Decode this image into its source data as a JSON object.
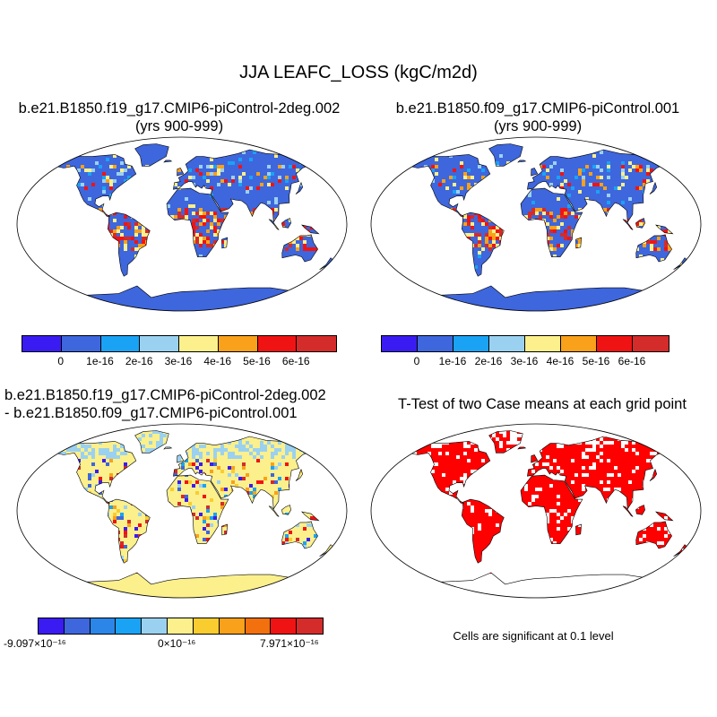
{
  "title": "JJA LEAFC_LOSS (kgC/m2d)",
  "panels": [
    {
      "line1": "b.e21.B1850.f19_g17.CMIP6-piControl-2deg.002",
      "line2": "(yrs 900-999)"
    },
    {
      "line1": "b.e21.B1850.f09_g17.CMIP6-piControl.001",
      "line2": "(yrs 900-999)"
    },
    {
      "line1": "b.e21.B1850.f19_g17.CMIP6-piControl-2deg.002",
      "line2": "- b.e21.B1850.f09_g17.CMIP6-piControl.001"
    },
    {
      "line1": "T-Test of two Case means at each grid point",
      "line2": ""
    }
  ],
  "colorbar_abs": {
    "colors": [
      "#3a1cf2",
      "#3e66dd",
      "#1aa3f5",
      "#9bd1f0",
      "#fbf08c",
      "#f9a11a",
      "#f01313",
      "#d42b2b"
    ],
    "labels": [
      "0",
      "1e-16",
      "2e-16",
      "3e-16",
      "4e-16",
      "5e-16",
      "6e-16"
    ]
  },
  "colorbar_diff": {
    "colors": [
      "#3a1cf2",
      "#3e66dd",
      "#2b86e8",
      "#1aa3f5",
      "#9bd1f0",
      "#fbf08c",
      "#f9cc30",
      "#f9a11a",
      "#f2700d",
      "#f01313",
      "#d42b2b"
    ],
    "min_label": "-9.097×10⁻¹⁶",
    "mid_label": "0×10⁻¹⁶",
    "max_label": "7.971×10⁻¹⁶"
  },
  "significance_note": "Cells are significant at 0.1 level",
  "colors": {
    "ocean": "#ffffff",
    "ttest": "#ff0000",
    "land_abs": "#3e66dd",
    "land_diff": "#fbf08c"
  }
}
